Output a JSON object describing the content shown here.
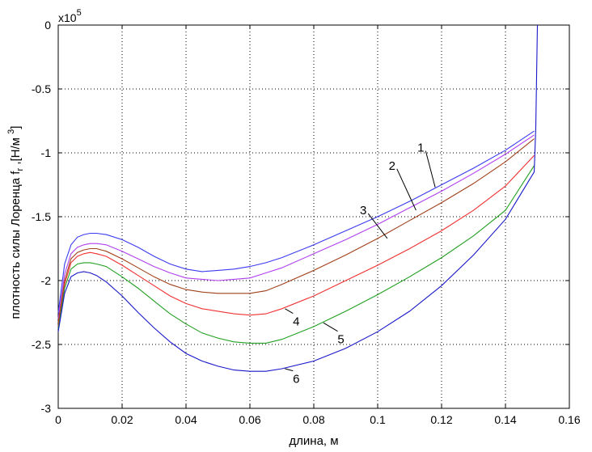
{
  "chart_data": {
    "type": "line",
    "title": "",
    "xlabel": "длина, м",
    "ylabel": "плотность силы Лоренца  fr ,[Н/м 3]",
    "ylabel_parts": {
      "main": "плотность силы Лоренца  f",
      "sub": "r",
      "unit_open": " ,[Н/м ",
      "sup": "3",
      "unit_close": "]"
    },
    "y_multiplier": {
      "base": "x10",
      "exp": "5"
    },
    "xlim": [
      0,
      0.16
    ],
    "ylim": [
      -3,
      0
    ],
    "xticks": [
      0,
      0.02,
      0.04,
      0.06,
      0.08,
      0.1,
      0.12,
      0.14,
      0.16
    ],
    "xtick_labels": [
      "0",
      "0.02",
      "0.04",
      "0.06",
      "0.08",
      "0.1",
      "0.12",
      "0.14",
      "0.16"
    ],
    "yticks": [
      0,
      -0.5,
      -1,
      -1.5,
      -2,
      -2.5,
      -3
    ],
    "ytick_labels": [
      "0",
      "-0.5",
      "-1",
      "-1.5",
      "-2",
      "-2.5",
      "-3"
    ],
    "grid": true,
    "x": [
      0,
      0.002,
      0.004,
      0.006,
      0.008,
      0.01,
      0.012,
      0.015,
      0.02,
      0.025,
      0.03,
      0.035,
      0.04,
      0.045,
      0.05,
      0.055,
      0.06,
      0.065,
      0.07,
      0.08,
      0.09,
      0.1,
      0.11,
      0.12,
      0.13,
      0.14,
      0.149
    ],
    "series": [
      {
        "name": "1",
        "color": "#3a3af0",
        "values": [
          -2.25,
          -1.87,
          -1.72,
          -1.66,
          -1.64,
          -1.63,
          -1.63,
          -1.64,
          -1.68,
          -1.74,
          -1.81,
          -1.87,
          -1.91,
          -1.93,
          -1.92,
          -1.91,
          -1.89,
          -1.86,
          -1.82,
          -1.72,
          -1.61,
          -1.5,
          -1.38,
          -1.25,
          -1.12,
          -0.98,
          -0.83
        ]
      },
      {
        "name": "2",
        "color": "#b040f0",
        "values": [
          -2.3,
          -1.95,
          -1.79,
          -1.74,
          -1.72,
          -1.71,
          -1.71,
          -1.72,
          -1.77,
          -1.83,
          -1.89,
          -1.94,
          -1.98,
          -1.99,
          -2.0,
          -1.99,
          -1.98,
          -1.94,
          -1.9,
          -1.79,
          -1.68,
          -1.56,
          -1.43,
          -1.3,
          -1.16,
          -1.01,
          -0.86
        ]
      },
      {
        "name": "3",
        "color": "#a0401a",
        "values": [
          -2.33,
          -2.0,
          -1.83,
          -1.78,
          -1.76,
          -1.75,
          -1.75,
          -1.77,
          -1.83,
          -1.9,
          -1.97,
          -2.03,
          -2.07,
          -2.09,
          -2.1,
          -2.1,
          -2.1,
          -2.08,
          -2.03,
          -1.92,
          -1.8,
          -1.67,
          -1.53,
          -1.39,
          -1.24,
          -1.07,
          -0.89
        ]
      },
      {
        "name": "4",
        "color": "#f03030",
        "values": [
          -2.36,
          -2.03,
          -1.86,
          -1.81,
          -1.79,
          -1.78,
          -1.79,
          -1.81,
          -1.88,
          -1.96,
          -2.04,
          -2.12,
          -2.18,
          -2.22,
          -2.24,
          -2.26,
          -2.27,
          -2.26,
          -2.22,
          -2.12,
          -2.0,
          -1.88,
          -1.75,
          -1.61,
          -1.45,
          -1.26,
          -1.02
        ]
      },
      {
        "name": "5",
        "color": "#20a020",
        "values": [
          -2.38,
          -2.06,
          -1.91,
          -1.87,
          -1.86,
          -1.86,
          -1.87,
          -1.89,
          -1.97,
          -2.06,
          -2.16,
          -2.26,
          -2.34,
          -2.41,
          -2.45,
          -2.48,
          -2.49,
          -2.49,
          -2.46,
          -2.36,
          -2.24,
          -2.11,
          -1.97,
          -1.82,
          -1.65,
          -1.45,
          -1.1
        ]
      },
      {
        "name": "6",
        "color": "#1818c8",
        "values": [
          -2.4,
          -2.1,
          -1.97,
          -1.94,
          -1.93,
          -1.94,
          -1.96,
          -2.01,
          -2.12,
          -2.25,
          -2.37,
          -2.48,
          -2.57,
          -2.63,
          -2.67,
          -2.7,
          -2.71,
          -2.71,
          -2.69,
          -2.63,
          -2.53,
          -2.4,
          -2.24,
          -2.04,
          -1.8,
          -1.52,
          -1.15
        ]
      }
    ],
    "spike": {
      "x": [
        0.149,
        0.1495,
        0.15
      ],
      "values": [
        -1.15,
        -0.8,
        0
      ]
    },
    "curve_labels": [
      {
        "text": "1",
        "label_x": 0.1135,
        "label_y": -0.96,
        "tip_x": 0.118,
        "tip_y": -1.27
      },
      {
        "text": "2",
        "label_x": 0.1045,
        "label_y": -1.1,
        "tip_x": 0.112,
        "tip_y": -1.45
      },
      {
        "text": "3",
        "label_x": 0.0955,
        "label_y": -1.45,
        "tip_x": 0.103,
        "tip_y": -1.67
      },
      {
        "text": "4",
        "label_x": 0.0745,
        "label_y": -2.32,
        "tip_x": 0.071,
        "tip_y": -2.22
      },
      {
        "text": "5",
        "label_x": 0.0885,
        "label_y": -2.46,
        "tip_x": 0.083,
        "tip_y": -2.33
      },
      {
        "text": "6",
        "label_x": 0.0745,
        "label_y": -2.77,
        "tip_x": 0.071,
        "tip_y": -2.69
      }
    ]
  }
}
